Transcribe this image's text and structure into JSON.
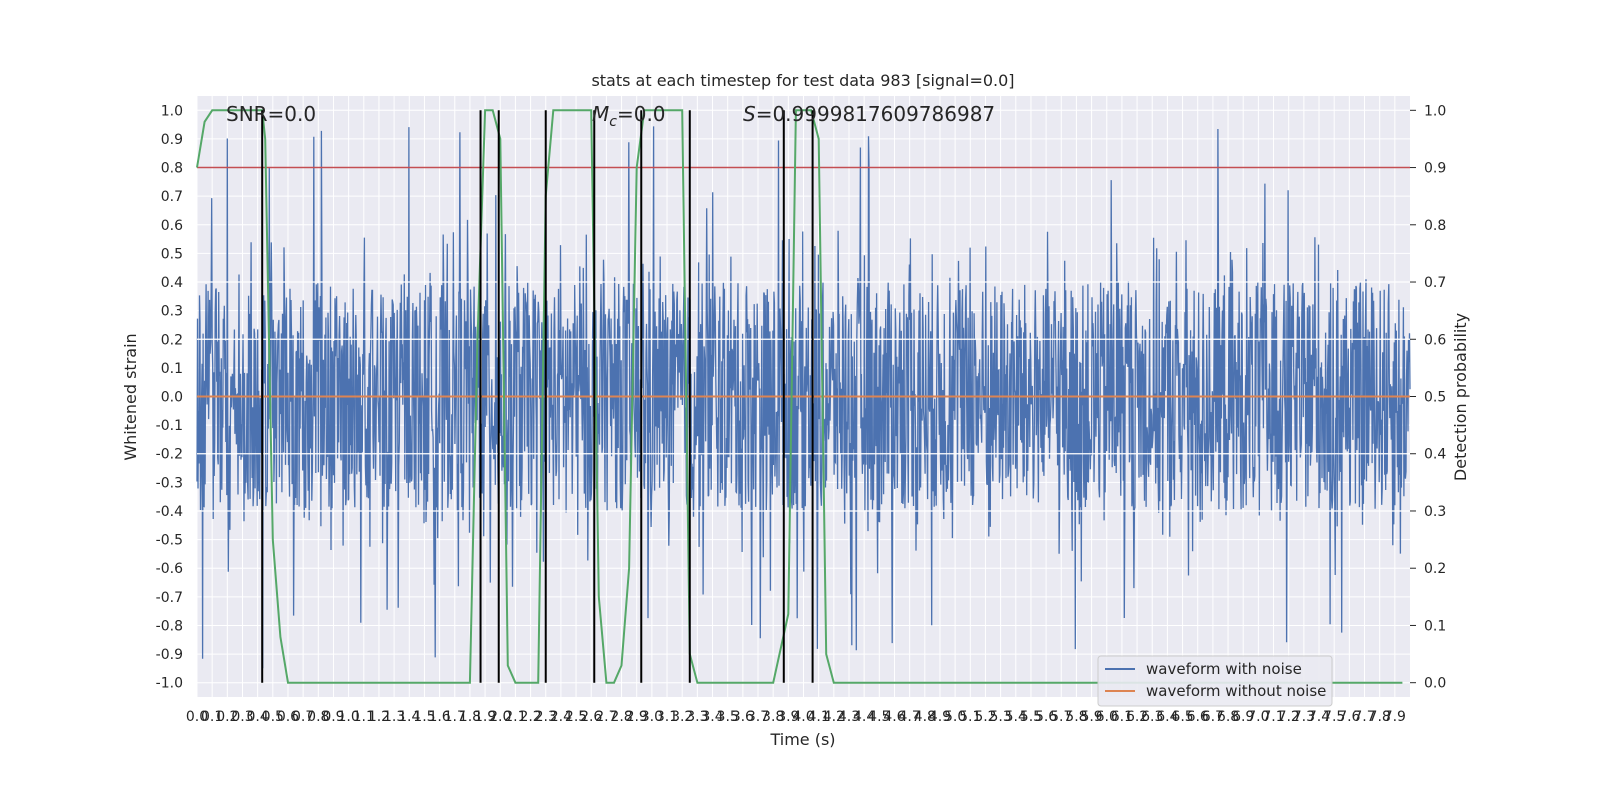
{
  "chart_data": {
    "type": "line",
    "title": "stats at each timestep for test data 983 [signal=0.0]",
    "xlabel": "Time (s)",
    "ylabel_left": "Whitened strain",
    "ylabel_right": "Detection probability",
    "xlim": [
      0,
      8.0
    ],
    "ylim_left": [
      -1.05,
      1.05
    ],
    "ylim_right": [
      0.0,
      1.0
    ],
    "x_ticks": [
      "0.0",
      "0.1",
      "0.2",
      "0.3",
      "0.4",
      "0.5",
      "0.6",
      "0.7",
      "0.8",
      "0.9",
      "1.0",
      "1.1",
      "1.2",
      "1.3",
      "1.4",
      "1.5",
      "1.6",
      "1.7",
      "1.8",
      "1.9",
      "2.0",
      "2.1",
      "2.2",
      "2.3",
      "2.4",
      "2.5",
      "2.6",
      "2.7",
      "2.8",
      "2.9",
      "3.0",
      "3.1",
      "3.2",
      "3.3",
      "3.4",
      "3.5",
      "3.6",
      "3.7",
      "3.8",
      "3.9",
      "4.0",
      "4.1",
      "4.2",
      "4.3",
      "4.4",
      "4.5",
      "4.6",
      "4.7",
      "4.8",
      "4.9",
      "5.0",
      "5.1",
      "5.2",
      "5.3",
      "5.4",
      "5.5",
      "5.6",
      "5.7",
      "5.8",
      "5.9",
      "6.0",
      "6.1",
      "6.2",
      "6.3",
      "6.4",
      "6.5",
      "6.6",
      "6.7",
      "6.8",
      "6.9",
      "7.0",
      "7.1",
      "7.2",
      "7.3",
      "7.4",
      "7.5",
      "7.6",
      "7.7",
      "7.8",
      "7.9"
    ],
    "y_ticks_left": [
      "-1.0",
      "-0.9",
      "-0.8",
      "-0.7",
      "-0.6",
      "-0.5",
      "-0.4",
      "-0.3",
      "-0.2",
      "-0.1",
      "0.0",
      "0.1",
      "0.2",
      "0.3",
      "0.4",
      "0.5",
      "0.6",
      "0.7",
      "0.8",
      "0.9",
      "1.0"
    ],
    "y_ticks_right": [
      "0.0",
      "0.1",
      "0.2",
      "0.3",
      "0.4",
      "0.5",
      "0.6",
      "0.7",
      "0.8",
      "0.9",
      "1.0"
    ],
    "grid": true,
    "legend_placement": "lower-right",
    "annotations": {
      "snr": "SNR=0.0",
      "mc_symbol": "M",
      "mc_sub": "c",
      "mc_value": "=0.0",
      "s_symbol": "S",
      "s_value": "=0.9999817609786987"
    },
    "series": [
      {
        "name": "waveform with noise",
        "color": "#4c72b0",
        "kind": "noise",
        "envelope_typical": 0.4,
        "peak_max": 0.95,
        "trough_min": -0.95
      },
      {
        "name": "waveform without noise",
        "color": "#dd8452",
        "kind": "constant",
        "value": 0.0
      }
    ],
    "detection_probability": {
      "color": "#55a868",
      "x": [
        0.0,
        0.05,
        0.1,
        0.2,
        0.3,
        0.4,
        0.43,
        0.45,
        0.5,
        0.55,
        0.6,
        0.7,
        1.0,
        1.5,
        1.8,
        1.85,
        1.9,
        1.95,
        2.0,
        2.05,
        2.1,
        2.2,
        2.25,
        2.3,
        2.35,
        2.4,
        2.5,
        2.55,
        2.6,
        2.65,
        2.7,
        2.75,
        2.8,
        2.85,
        2.9,
        2.95,
        3.0,
        3.05,
        3.1,
        3.2,
        3.25,
        3.3,
        3.35,
        3.4,
        3.5,
        3.8,
        3.9,
        3.95,
        4.05,
        4.1,
        4.15,
        4.2,
        5.0,
        6.0,
        7.0,
        7.95
      ],
      "y": [
        0.9,
        0.98,
        1.0,
        1.0,
        1.0,
        1.0,
        1.0,
        0.95,
        0.25,
        0.08,
        0.0,
        0.0,
        0.0,
        0.0,
        0.0,
        0.6,
        1.0,
        1.0,
        0.95,
        0.03,
        0.0,
        0.0,
        0.0,
        0.85,
        1.0,
        1.0,
        1.0,
        1.0,
        1.0,
        0.15,
        0.0,
        0.0,
        0.03,
        0.2,
        0.9,
        1.0,
        1.0,
        1.0,
        1.0,
        1.0,
        0.05,
        0.0,
        0.0,
        0.0,
        0.0,
        0.0,
        0.12,
        1.0,
        1.0,
        0.95,
        0.05,
        0.0,
        0.0,
        0.0,
        0.0,
        0.0
      ]
    },
    "threshold": {
      "color": "#c44e52",
      "value": 0.9
    },
    "trigger_lines_x": [
      0.43,
      1.87,
      1.99,
      2.3,
      2.62,
      2.93,
      3.25,
      3.87,
      4.06
    ],
    "mid_guides_right": [
      0.3,
      0.4,
      0.6,
      0.7
    ]
  }
}
